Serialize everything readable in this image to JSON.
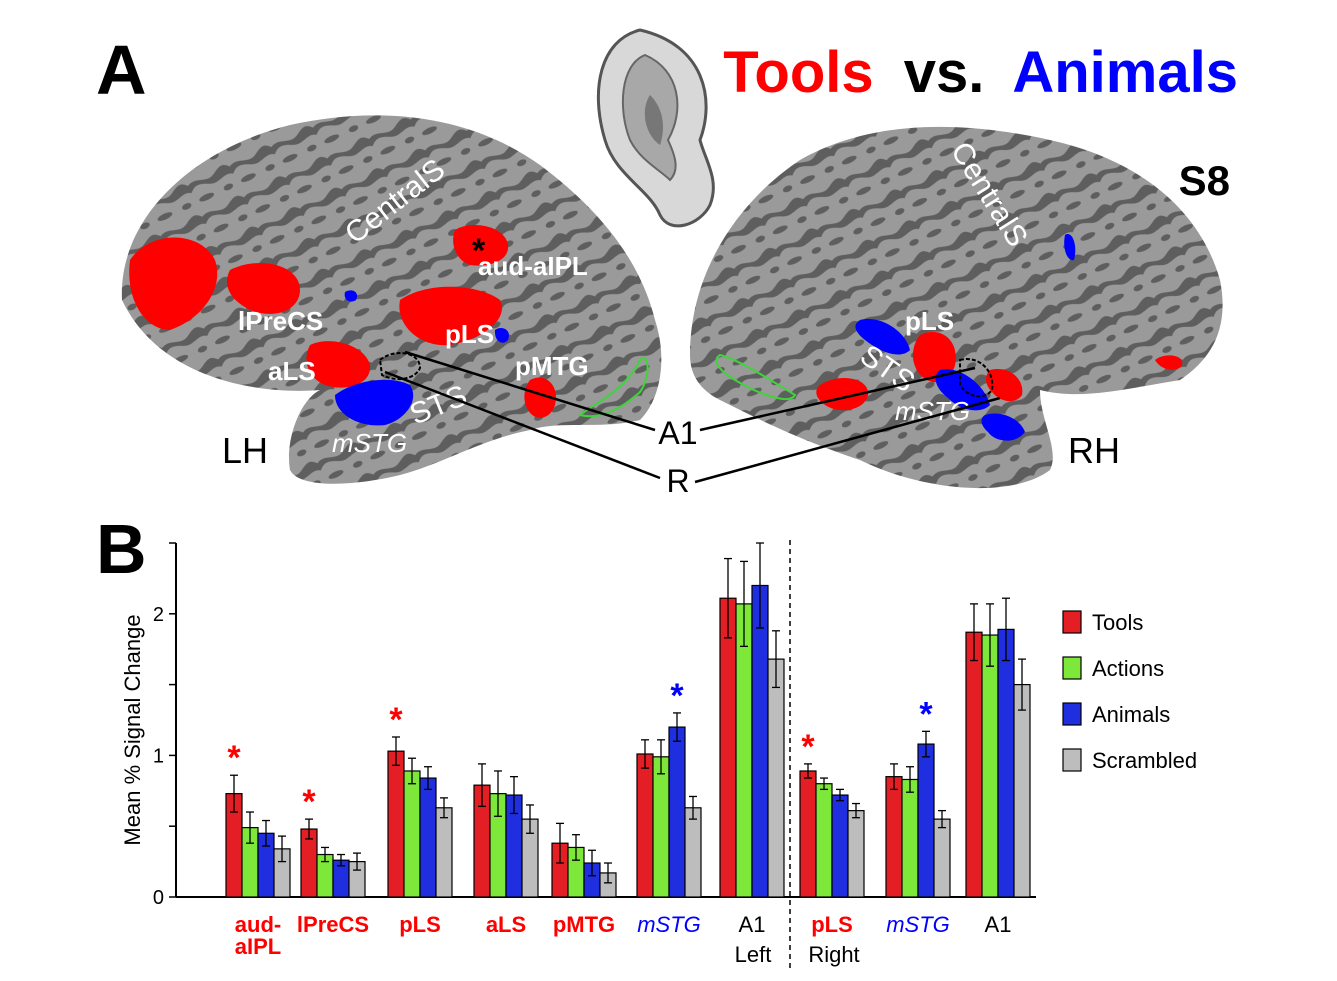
{
  "panel_a": {
    "label": "A",
    "title_parts": {
      "tools": "Tools",
      "vs": "vs.",
      "animals": "Animals"
    },
    "subject": "S8",
    "hemispheres": {
      "left": "LH",
      "right": "RH"
    },
    "left_labels": {
      "centrals": "CentralS",
      "aud_aipl": "aud-aIPL",
      "asterisk": "*",
      "lprecs": "lPreCS",
      "pls": "pLS",
      "als": "aLS",
      "pmtg": "pMTG",
      "sts": "STS",
      "mstg": "mSTG"
    },
    "right_labels": {
      "centrals": "CentralS",
      "pls": "pLS",
      "sts": "STS",
      "mstg": "mSTG"
    },
    "callouts": {
      "a1": "A1",
      "r": "R"
    }
  },
  "panel_b": {
    "label": "B",
    "divider_label_left": "Left",
    "divider_label_right": "Right"
  },
  "colors": {
    "tools": "#e31e24",
    "actions": "#7ee83a",
    "animals": "#1f2fe0",
    "scrambled": "#bdbdbd",
    "tools_text": "#ff0000",
    "animals_text": "#0000ff",
    "cortex_light": "#9a9a9a",
    "cortex_dark": "#5e5e5e"
  },
  "chart_data": {
    "type": "bar",
    "ylabel": "Mean % Signal Change",
    "ylim": [
      0,
      2.5
    ],
    "yticks": [
      0,
      1,
      2
    ],
    "categories": [
      {
        "label": "aud-\naIPL",
        "color": "tools",
        "italic": false,
        "bold": true
      },
      {
        "label": "lPreCS",
        "color": "tools",
        "italic": false,
        "bold": true
      },
      {
        "label": "pLS",
        "color": "tools",
        "italic": false,
        "bold": true
      },
      {
        "label": "aLS",
        "color": "tools",
        "italic": false,
        "bold": true
      },
      {
        "label": "pMTG",
        "color": "tools",
        "italic": false,
        "bold": true
      },
      {
        "label": "mSTG",
        "color": "animals",
        "italic": true,
        "bold": false
      },
      {
        "label": "A1",
        "color": "black",
        "italic": false,
        "bold": false
      },
      {
        "label": "pLS",
        "color": "tools",
        "italic": false,
        "bold": true
      },
      {
        "label": "mSTG",
        "color": "animals",
        "italic": true,
        "bold": false
      },
      {
        "label": "A1",
        "color": "black",
        "italic": false,
        "bold": false
      }
    ],
    "series": [
      {
        "name": "Tools",
        "color": "tools",
        "values": [
          0.73,
          0.48,
          1.03,
          0.79,
          0.38,
          1.01,
          2.11,
          0.89,
          0.85,
          1.87
        ],
        "errors": [
          0.13,
          0.07,
          0.1,
          0.15,
          0.14,
          0.1,
          0.28,
          0.05,
          0.09,
          0.2
        ]
      },
      {
        "name": "Actions",
        "color": "actions",
        "values": [
          0.49,
          0.3,
          0.89,
          0.73,
          0.35,
          0.99,
          2.07,
          0.8,
          0.83,
          1.85
        ],
        "errors": [
          0.11,
          0.05,
          0.09,
          0.16,
          0.09,
          0.12,
          0.3,
          0.04,
          0.09,
          0.22
        ]
      },
      {
        "name": "Animals",
        "color": "animals",
        "values": [
          0.45,
          0.26,
          0.84,
          0.72,
          0.24,
          1.2,
          2.2,
          0.72,
          1.08,
          1.89
        ],
        "errors": [
          0.09,
          0.04,
          0.08,
          0.13,
          0.09,
          0.1,
          0.3,
          0.04,
          0.09,
          0.22
        ]
      },
      {
        "name": "Scrambled",
        "color": "scrambled",
        "values": [
          0.34,
          0.25,
          0.63,
          0.55,
          0.17,
          0.63,
          1.68,
          0.61,
          0.55,
          1.5
        ],
        "errors": [
          0.09,
          0.06,
          0.07,
          0.1,
          0.07,
          0.08,
          0.2,
          0.05,
          0.06,
          0.18
        ]
      }
    ],
    "significance": [
      {
        "category": 0,
        "series": "Tools",
        "symbol": "*",
        "color": "tools"
      },
      {
        "category": 1,
        "series": "Tools",
        "symbol": "*",
        "color": "tools"
      },
      {
        "category": 2,
        "series": "Tools",
        "symbol": "*",
        "color": "tools"
      },
      {
        "category": 5,
        "series": "Animals",
        "symbol": "*",
        "color": "animals"
      },
      {
        "category": 7,
        "series": "Tools",
        "symbol": "*",
        "color": "tools"
      },
      {
        "category": 8,
        "series": "Animals",
        "symbol": "*",
        "color": "animals"
      }
    ],
    "legend": {
      "position": "right",
      "entries": [
        "Tools",
        "Actions",
        "Animals",
        "Scrambled"
      ]
    },
    "grid": false
  }
}
